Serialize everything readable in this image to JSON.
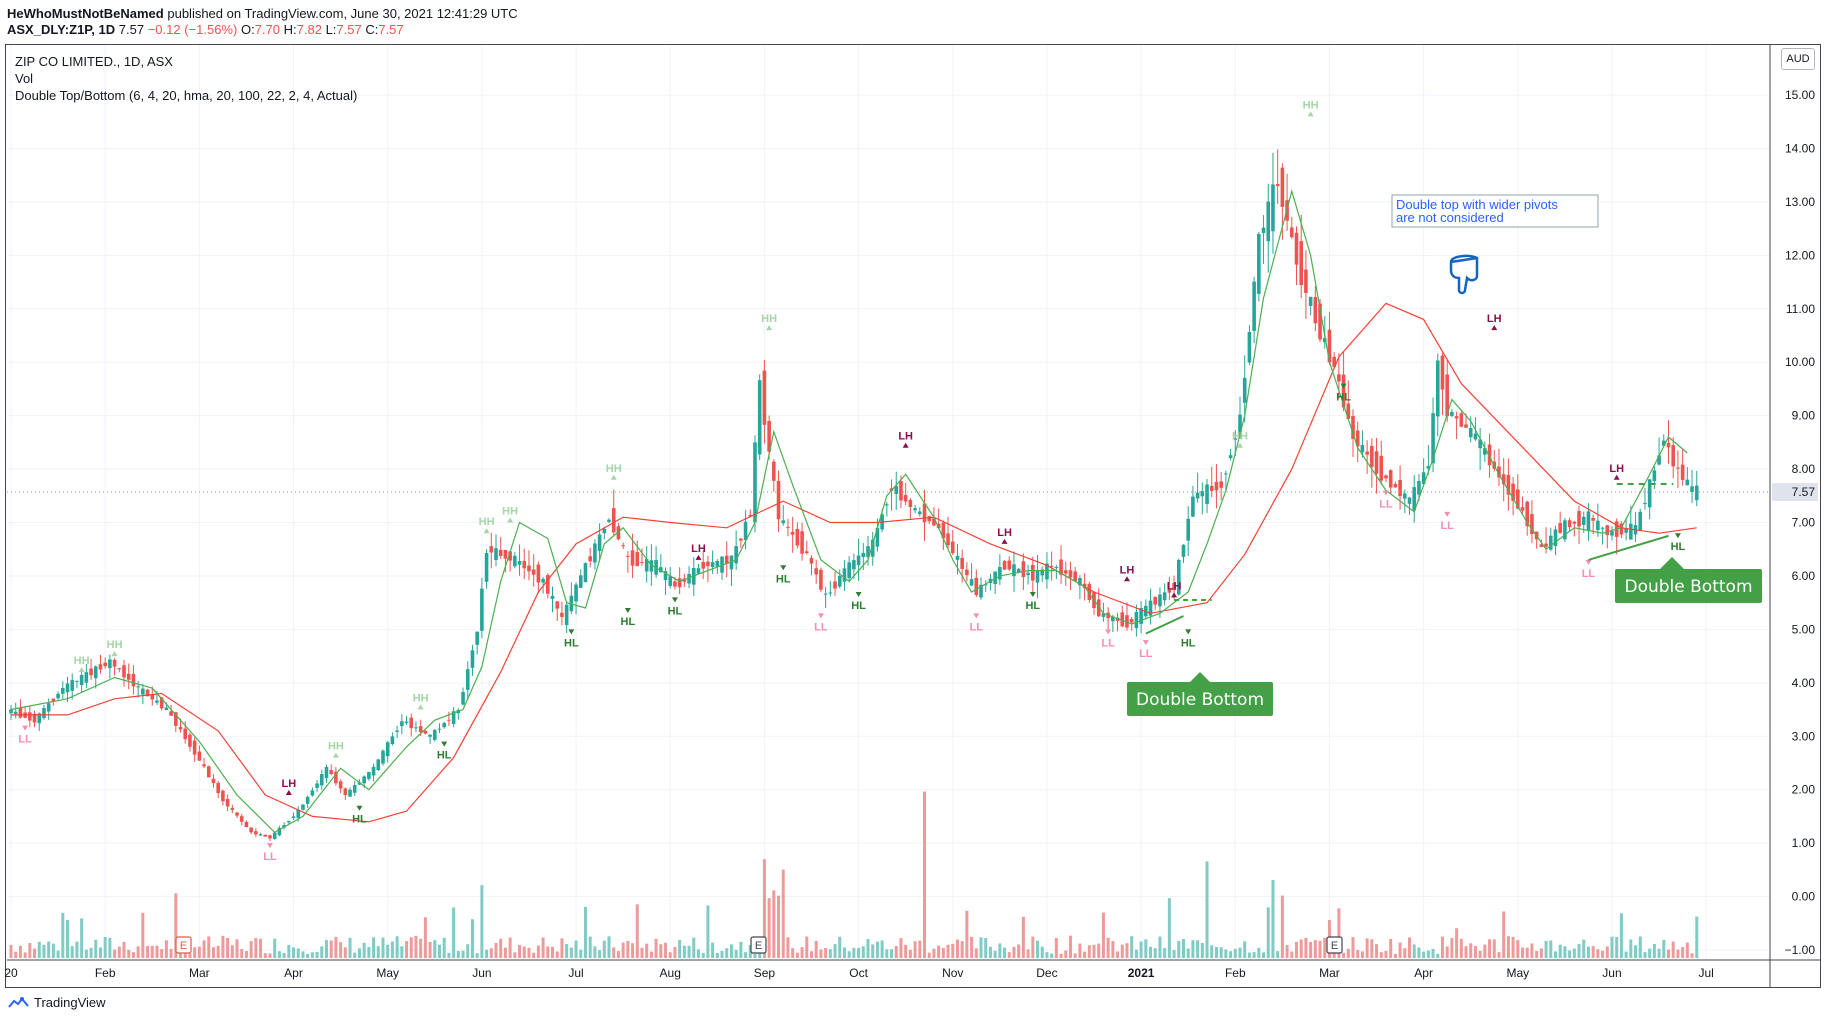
{
  "header": {
    "author": "HeWhoMustNotBeNamed",
    "published_text": "published on TradingView.com, June 30, 2021 12:41:29 UTC",
    "symbol": "ASX_DLY:Z1P, 1D",
    "last": "7.57",
    "change": "−0.12 (−1.56%)",
    "o_label": "O:",
    "o": "7.70",
    "h_label": "H:",
    "h": "7.82",
    "l_label": "L:",
    "l": "7.57",
    "c_label": "C:",
    "c": "7.57"
  },
  "legend": {
    "line1": "ZIP CO LIMITED., 1D, ASX",
    "line2": "Vol",
    "line3": "Double Top/Bottom (6, 4, 20, hma, 20, 100, 22, 2, 4, Actual)"
  },
  "currency": "AUD",
  "footer": {
    "brand": "TradingView"
  },
  "colors": {
    "up": "#26a69a",
    "down": "#ef5350",
    "fast_ma": "#4caf50",
    "slow_ma": "#f44336",
    "callout": "#43a047",
    "note_border": "#2962ff"
  },
  "chart_data": {
    "type": "candlestick",
    "y_axis": {
      "ticks": [
        "15.00",
        "14.00",
        "13.00",
        "12.00",
        "11.00",
        "10.00",
        "9.00",
        "8.00",
        "7.00",
        "6.00",
        "5.00",
        "4.00",
        "3.00",
        "2.00",
        "1.00",
        "0.00",
        "−1.00"
      ],
      "ylim": [
        -1.0,
        15.0
      ]
    },
    "last_price_label": "7.57",
    "x_axis": {
      "ticks": [
        "20",
        "Feb",
        "Mar",
        "Apr",
        "May",
        "Jun",
        "Jul",
        "Aug",
        "Sep",
        "Oct",
        "Nov",
        "Dec",
        "2021",
        "Feb",
        "Mar",
        "Apr",
        "May",
        "Jun",
        "Jul"
      ]
    },
    "price_path": [
      {
        "m": 0.0,
        "p": 3.5
      },
      {
        "m": 0.3,
        "p": 3.3
      },
      {
        "m": 0.6,
        "p": 3.9
      },
      {
        "m": 0.9,
        "p": 4.2
      },
      {
        "m": 1.1,
        "p": 4.4
      },
      {
        "m": 1.4,
        "p": 3.9
      },
      {
        "m": 1.7,
        "p": 3.5
      },
      {
        "m": 2.0,
        "p": 2.7
      },
      {
        "m": 2.3,
        "p": 1.8
      },
      {
        "m": 2.6,
        "p": 1.2
      },
      {
        "m": 2.8,
        "p": 1.1
      },
      {
        "m": 3.1,
        "p": 1.6
      },
      {
        "m": 3.4,
        "p": 2.4
      },
      {
        "m": 3.6,
        "p": 1.9
      },
      {
        "m": 3.9,
        "p": 2.4
      },
      {
        "m": 4.2,
        "p": 3.3
      },
      {
        "m": 4.5,
        "p": 3.0
      },
      {
        "m": 4.8,
        "p": 3.5
      },
      {
        "m": 5.0,
        "p": 5.0
      },
      {
        "m": 5.1,
        "p": 6.5
      },
      {
        "m": 5.4,
        "p": 6.3
      },
      {
        "m": 5.7,
        "p": 5.9
      },
      {
        "m": 5.9,
        "p": 5.2
      },
      {
        "m": 6.1,
        "p": 6.0
      },
      {
        "m": 6.4,
        "p": 7.1
      },
      {
        "m": 6.6,
        "p": 6.3
      },
      {
        "m": 6.9,
        "p": 6.2
      },
      {
        "m": 7.1,
        "p": 5.8
      },
      {
        "m": 7.4,
        "p": 6.2
      },
      {
        "m": 7.7,
        "p": 6.3
      },
      {
        "m": 7.9,
        "p": 7.2
      },
      {
        "m": 8.0,
        "p": 9.6
      },
      {
        "m": 8.1,
        "p": 8.3
      },
      {
        "m": 8.2,
        "p": 7.1
      },
      {
        "m": 8.5,
        "p": 6.4
      },
      {
        "m": 8.7,
        "p": 5.6
      },
      {
        "m": 8.9,
        "p": 6.1
      },
      {
        "m": 9.2,
        "p": 6.6
      },
      {
        "m": 9.4,
        "p": 7.7
      },
      {
        "m": 9.6,
        "p": 7.3
      },
      {
        "m": 9.9,
        "p": 6.9
      },
      {
        "m": 10.1,
        "p": 6.3
      },
      {
        "m": 10.3,
        "p": 5.7
      },
      {
        "m": 10.6,
        "p": 6.2
      },
      {
        "m": 10.9,
        "p": 6.0
      },
      {
        "m": 11.1,
        "p": 6.2
      },
      {
        "m": 11.4,
        "p": 5.9
      },
      {
        "m": 11.6,
        "p": 5.3
      },
      {
        "m": 11.9,
        "p": 5.1
      },
      {
        "m": 12.1,
        "p": 5.4
      },
      {
        "m": 12.4,
        "p": 5.8
      },
      {
        "m": 12.6,
        "p": 7.5
      },
      {
        "m": 12.9,
        "p": 7.7
      },
      {
        "m": 13.1,
        "p": 9.0
      },
      {
        "m": 13.3,
        "p": 12.3
      },
      {
        "m": 13.5,
        "p": 13.4
      },
      {
        "m": 13.7,
        "p": 11.9
      },
      {
        "m": 13.9,
        "p": 10.8
      },
      {
        "m": 14.1,
        "p": 9.9
      },
      {
        "m": 14.3,
        "p": 8.6
      },
      {
        "m": 14.6,
        "p": 7.9
      },
      {
        "m": 14.9,
        "p": 7.4
      },
      {
        "m": 15.1,
        "p": 8.1
      },
      {
        "m": 15.2,
        "p": 10.0
      },
      {
        "m": 15.3,
        "p": 9.1
      },
      {
        "m": 15.6,
        "p": 8.6
      },
      {
        "m": 15.8,
        "p": 8.0
      },
      {
        "m": 16.1,
        "p": 7.2
      },
      {
        "m": 16.3,
        "p": 6.5
      },
      {
        "m": 16.5,
        "p": 6.9
      },
      {
        "m": 16.8,
        "p": 7.1
      },
      {
        "m": 17.0,
        "p": 6.8
      },
      {
        "m": 17.3,
        "p": 6.9
      },
      {
        "m": 17.5,
        "p": 8.0
      },
      {
        "m": 17.6,
        "p": 8.6
      },
      {
        "m": 17.7,
        "p": 8.1
      },
      {
        "m": 17.9,
        "p": 7.6
      }
    ],
    "fast_ma_path": [
      {
        "m": 0.0,
        "p": 3.5
      },
      {
        "m": 0.6,
        "p": 3.7
      },
      {
        "m": 1.1,
        "p": 4.1
      },
      {
        "m": 1.5,
        "p": 3.9
      },
      {
        "m": 2.0,
        "p": 2.9
      },
      {
        "m": 2.4,
        "p": 1.9
      },
      {
        "m": 2.8,
        "p": 1.2
      },
      {
        "m": 3.1,
        "p": 1.5
      },
      {
        "m": 3.5,
        "p": 2.4
      },
      {
        "m": 3.8,
        "p": 2.0
      },
      {
        "m": 4.2,
        "p": 2.8
      },
      {
        "m": 4.5,
        "p": 3.3
      },
      {
        "m": 4.8,
        "p": 3.5
      },
      {
        "m": 5.0,
        "p": 4.3
      },
      {
        "m": 5.2,
        "p": 5.9
      },
      {
        "m": 5.4,
        "p": 7.0
      },
      {
        "m": 5.7,
        "p": 6.7
      },
      {
        "m": 5.9,
        "p": 5.5
      },
      {
        "m": 6.1,
        "p": 5.4
      },
      {
        "m": 6.3,
        "p": 6.6
      },
      {
        "m": 6.5,
        "p": 6.9
      },
      {
        "m": 6.8,
        "p": 6.2
      },
      {
        "m": 7.1,
        "p": 5.9
      },
      {
        "m": 7.4,
        "p": 6.1
      },
      {
        "m": 7.7,
        "p": 6.3
      },
      {
        "m": 7.9,
        "p": 7.0
      },
      {
        "m": 8.1,
        "p": 8.7
      },
      {
        "m": 8.3,
        "p": 7.7
      },
      {
        "m": 8.6,
        "p": 6.3
      },
      {
        "m": 8.9,
        "p": 5.9
      },
      {
        "m": 9.1,
        "p": 6.3
      },
      {
        "m": 9.3,
        "p": 7.5
      },
      {
        "m": 9.5,
        "p": 7.9
      },
      {
        "m": 9.8,
        "p": 7.1
      },
      {
        "m": 10.0,
        "p": 6.3
      },
      {
        "m": 10.2,
        "p": 5.7
      },
      {
        "m": 10.5,
        "p": 6.0
      },
      {
        "m": 10.8,
        "p": 6.1
      },
      {
        "m": 11.1,
        "p": 6.1
      },
      {
        "m": 11.4,
        "p": 5.8
      },
      {
        "m": 11.6,
        "p": 5.3
      },
      {
        "m": 11.9,
        "p": 5.1
      },
      {
        "m": 12.2,
        "p": 5.3
      },
      {
        "m": 12.5,
        "p": 5.7
      },
      {
        "m": 12.7,
        "p": 6.6
      },
      {
        "m": 12.9,
        "p": 7.6
      },
      {
        "m": 13.1,
        "p": 9.0
      },
      {
        "m": 13.3,
        "p": 11.2
      },
      {
        "m": 13.6,
        "p": 13.2
      },
      {
        "m": 13.8,
        "p": 12.0
      },
      {
        "m": 14.0,
        "p": 10.0
      },
      {
        "m": 14.3,
        "p": 8.4
      },
      {
        "m": 14.6,
        "p": 7.6
      },
      {
        "m": 14.9,
        "p": 7.2
      },
      {
        "m": 15.1,
        "p": 8.2
      },
      {
        "m": 15.3,
        "p": 9.3
      },
      {
        "m": 15.5,
        "p": 8.9
      },
      {
        "m": 15.8,
        "p": 7.9
      },
      {
        "m": 16.1,
        "p": 7.0
      },
      {
        "m": 16.3,
        "p": 6.5
      },
      {
        "m": 16.6,
        "p": 6.9
      },
      {
        "m": 16.9,
        "p": 6.8
      },
      {
        "m": 17.1,
        "p": 6.9
      },
      {
        "m": 17.4,
        "p": 7.9
      },
      {
        "m": 17.6,
        "p": 8.6
      },
      {
        "m": 17.8,
        "p": 8.3
      }
    ],
    "slow_ma_path": [
      {
        "m": 0.0,
        "p": 3.4
      },
      {
        "m": 0.6,
        "p": 3.4
      },
      {
        "m": 1.1,
        "p": 3.7
      },
      {
        "m": 1.6,
        "p": 3.8
      },
      {
        "m": 2.2,
        "p": 3.1
      },
      {
        "m": 2.7,
        "p": 1.9
      },
      {
        "m": 3.2,
        "p": 1.5
      },
      {
        "m": 3.8,
        "p": 1.4
      },
      {
        "m": 4.2,
        "p": 1.6
      },
      {
        "m": 4.7,
        "p": 2.6
      },
      {
        "m": 5.2,
        "p": 4.2
      },
      {
        "m": 5.6,
        "p": 5.7
      },
      {
        "m": 6.0,
        "p": 6.6
      },
      {
        "m": 6.5,
        "p": 7.1
      },
      {
        "m": 7.0,
        "p": 7.0
      },
      {
        "m": 7.6,
        "p": 6.9
      },
      {
        "m": 8.2,
        "p": 7.4
      },
      {
        "m": 8.7,
        "p": 7.0
      },
      {
        "m": 9.2,
        "p": 7.0
      },
      {
        "m": 9.8,
        "p": 7.1
      },
      {
        "m": 10.4,
        "p": 6.6
      },
      {
        "m": 11.0,
        "p": 6.2
      },
      {
        "m": 11.5,
        "p": 5.7
      },
      {
        "m": 12.1,
        "p": 5.3
      },
      {
        "m": 12.7,
        "p": 5.5
      },
      {
        "m": 13.1,
        "p": 6.4
      },
      {
        "m": 13.6,
        "p": 8.0
      },
      {
        "m": 14.1,
        "p": 10.1
      },
      {
        "m": 14.6,
        "p": 11.1
      },
      {
        "m": 15.0,
        "p": 10.8
      },
      {
        "m": 15.4,
        "p": 9.6
      },
      {
        "m": 16.0,
        "p": 8.5
      },
      {
        "m": 16.6,
        "p": 7.4
      },
      {
        "m": 17.1,
        "p": 6.9
      },
      {
        "m": 17.5,
        "p": 6.8
      },
      {
        "m": 17.9,
        "p": 6.9
      }
    ],
    "volume_spikes": [
      {
        "m": 5.0,
        "v": 1.4
      },
      {
        "m": 8.0,
        "v": 1.9
      },
      {
        "m": 8.2,
        "v": 1.7
      },
      {
        "m": 9.7,
        "v": 3.2
      },
      {
        "m": 12.7,
        "v": 1.4
      },
      {
        "m": 13.4,
        "v": 1.5
      },
      {
        "m": 8.1,
        "v": 1.3
      },
      {
        "m": 13.5,
        "v": 1.2
      }
    ],
    "pivots": [
      {
        "label": "LL",
        "m": 0.15,
        "p": 3.2,
        "kind": "low"
      },
      {
        "label": "HH",
        "m": 0.75,
        "p": 4.2,
        "kind": "high"
      },
      {
        "label": "HH",
        "m": 1.1,
        "p": 4.5,
        "kind": "high"
      },
      {
        "label": "LL",
        "m": 2.75,
        "p": 1.0,
        "kind": "low"
      },
      {
        "label": "LH",
        "m": 2.95,
        "p": 1.9,
        "kind": "high2"
      },
      {
        "label": "HH",
        "m": 3.45,
        "p": 2.6,
        "kind": "high"
      },
      {
        "label": "HL",
        "m": 3.7,
        "p": 1.7,
        "kind": "low2"
      },
      {
        "label": "HL",
        "m": 4.6,
        "p": 2.9,
        "kind": "low2"
      },
      {
        "label": "HH",
        "m": 4.35,
        "p": 3.5,
        "kind": "high"
      },
      {
        "label": "HH",
        "m": 5.05,
        "p": 6.8,
        "kind": "high"
      },
      {
        "label": "HH",
        "m": 5.3,
        "p": 7.0,
        "kind": "high"
      },
      {
        "label": "HL",
        "m": 5.95,
        "p": 5.0,
        "kind": "low2"
      },
      {
        "label": "HH",
        "m": 6.4,
        "p": 7.8,
        "kind": "high"
      },
      {
        "label": "HL",
        "m": 6.55,
        "p": 5.4,
        "kind": "low2"
      },
      {
        "label": "HL",
        "m": 7.05,
        "p": 5.6,
        "kind": "low2"
      },
      {
        "label": "LH",
        "m": 7.3,
        "p": 6.3,
        "kind": "high2"
      },
      {
        "label": "HH",
        "m": 8.05,
        "p": 10.6,
        "kind": "high"
      },
      {
        "label": "HL",
        "m": 8.2,
        "p": 6.2,
        "kind": "low2"
      },
      {
        "label": "LL",
        "m": 8.6,
        "p": 5.3,
        "kind": "low"
      },
      {
        "label": "HL",
        "m": 9.0,
        "p": 5.7,
        "kind": "low2"
      },
      {
        "label": "LH",
        "m": 9.5,
        "p": 8.4,
        "kind": "high2"
      },
      {
        "label": "LL",
        "m": 10.25,
        "p": 5.3,
        "kind": "low"
      },
      {
        "label": "LH",
        "m": 10.55,
        "p": 6.6,
        "kind": "high2"
      },
      {
        "label": "HL",
        "m": 10.85,
        "p": 5.7,
        "kind": "low2"
      },
      {
        "label": "LL",
        "m": 11.65,
        "p": 5.0,
        "kind": "low"
      },
      {
        "label": "LH",
        "m": 11.85,
        "p": 5.9,
        "kind": "high2"
      },
      {
        "label": "LL",
        "m": 12.05,
        "p": 4.8,
        "kind": "low"
      },
      {
        "label": "LH",
        "m": 12.35,
        "p": 5.6,
        "kind": "high2"
      },
      {
        "label": "HL",
        "m": 12.5,
        "p": 5.0,
        "kind": "low2"
      },
      {
        "label": "HH",
        "m": 13.05,
        "p": 8.4,
        "kind": "high"
      },
      {
        "label": "HH",
        "m": 13.8,
        "p": 14.6,
        "kind": "high"
      },
      {
        "label": "HL",
        "m": 14.15,
        "p": 9.6,
        "kind": "low2"
      },
      {
        "label": "LL",
        "m": 14.6,
        "p": 7.6,
        "kind": "low"
      },
      {
        "label": "LL",
        "m": 15.25,
        "p": 7.2,
        "kind": "low"
      },
      {
        "label": "LH",
        "m": 15.75,
        "p": 10.6,
        "kind": "high2"
      },
      {
        "label": "LL",
        "m": 16.75,
        "p": 6.3,
        "kind": "low"
      },
      {
        "label": "LH",
        "m": 17.05,
        "p": 7.8,
        "kind": "high2"
      },
      {
        "label": "HL",
        "m": 17.7,
        "p": 6.8,
        "kind": "low2"
      }
    ],
    "annotations": {
      "db1_label": "Double Bottom",
      "db2_label": "Double Bottom",
      "note_line1": "Double top with wider pivots",
      "note_line2": "are not considered",
      "earnings_marks": [
        "E",
        "E",
        "E"
      ]
    }
  }
}
